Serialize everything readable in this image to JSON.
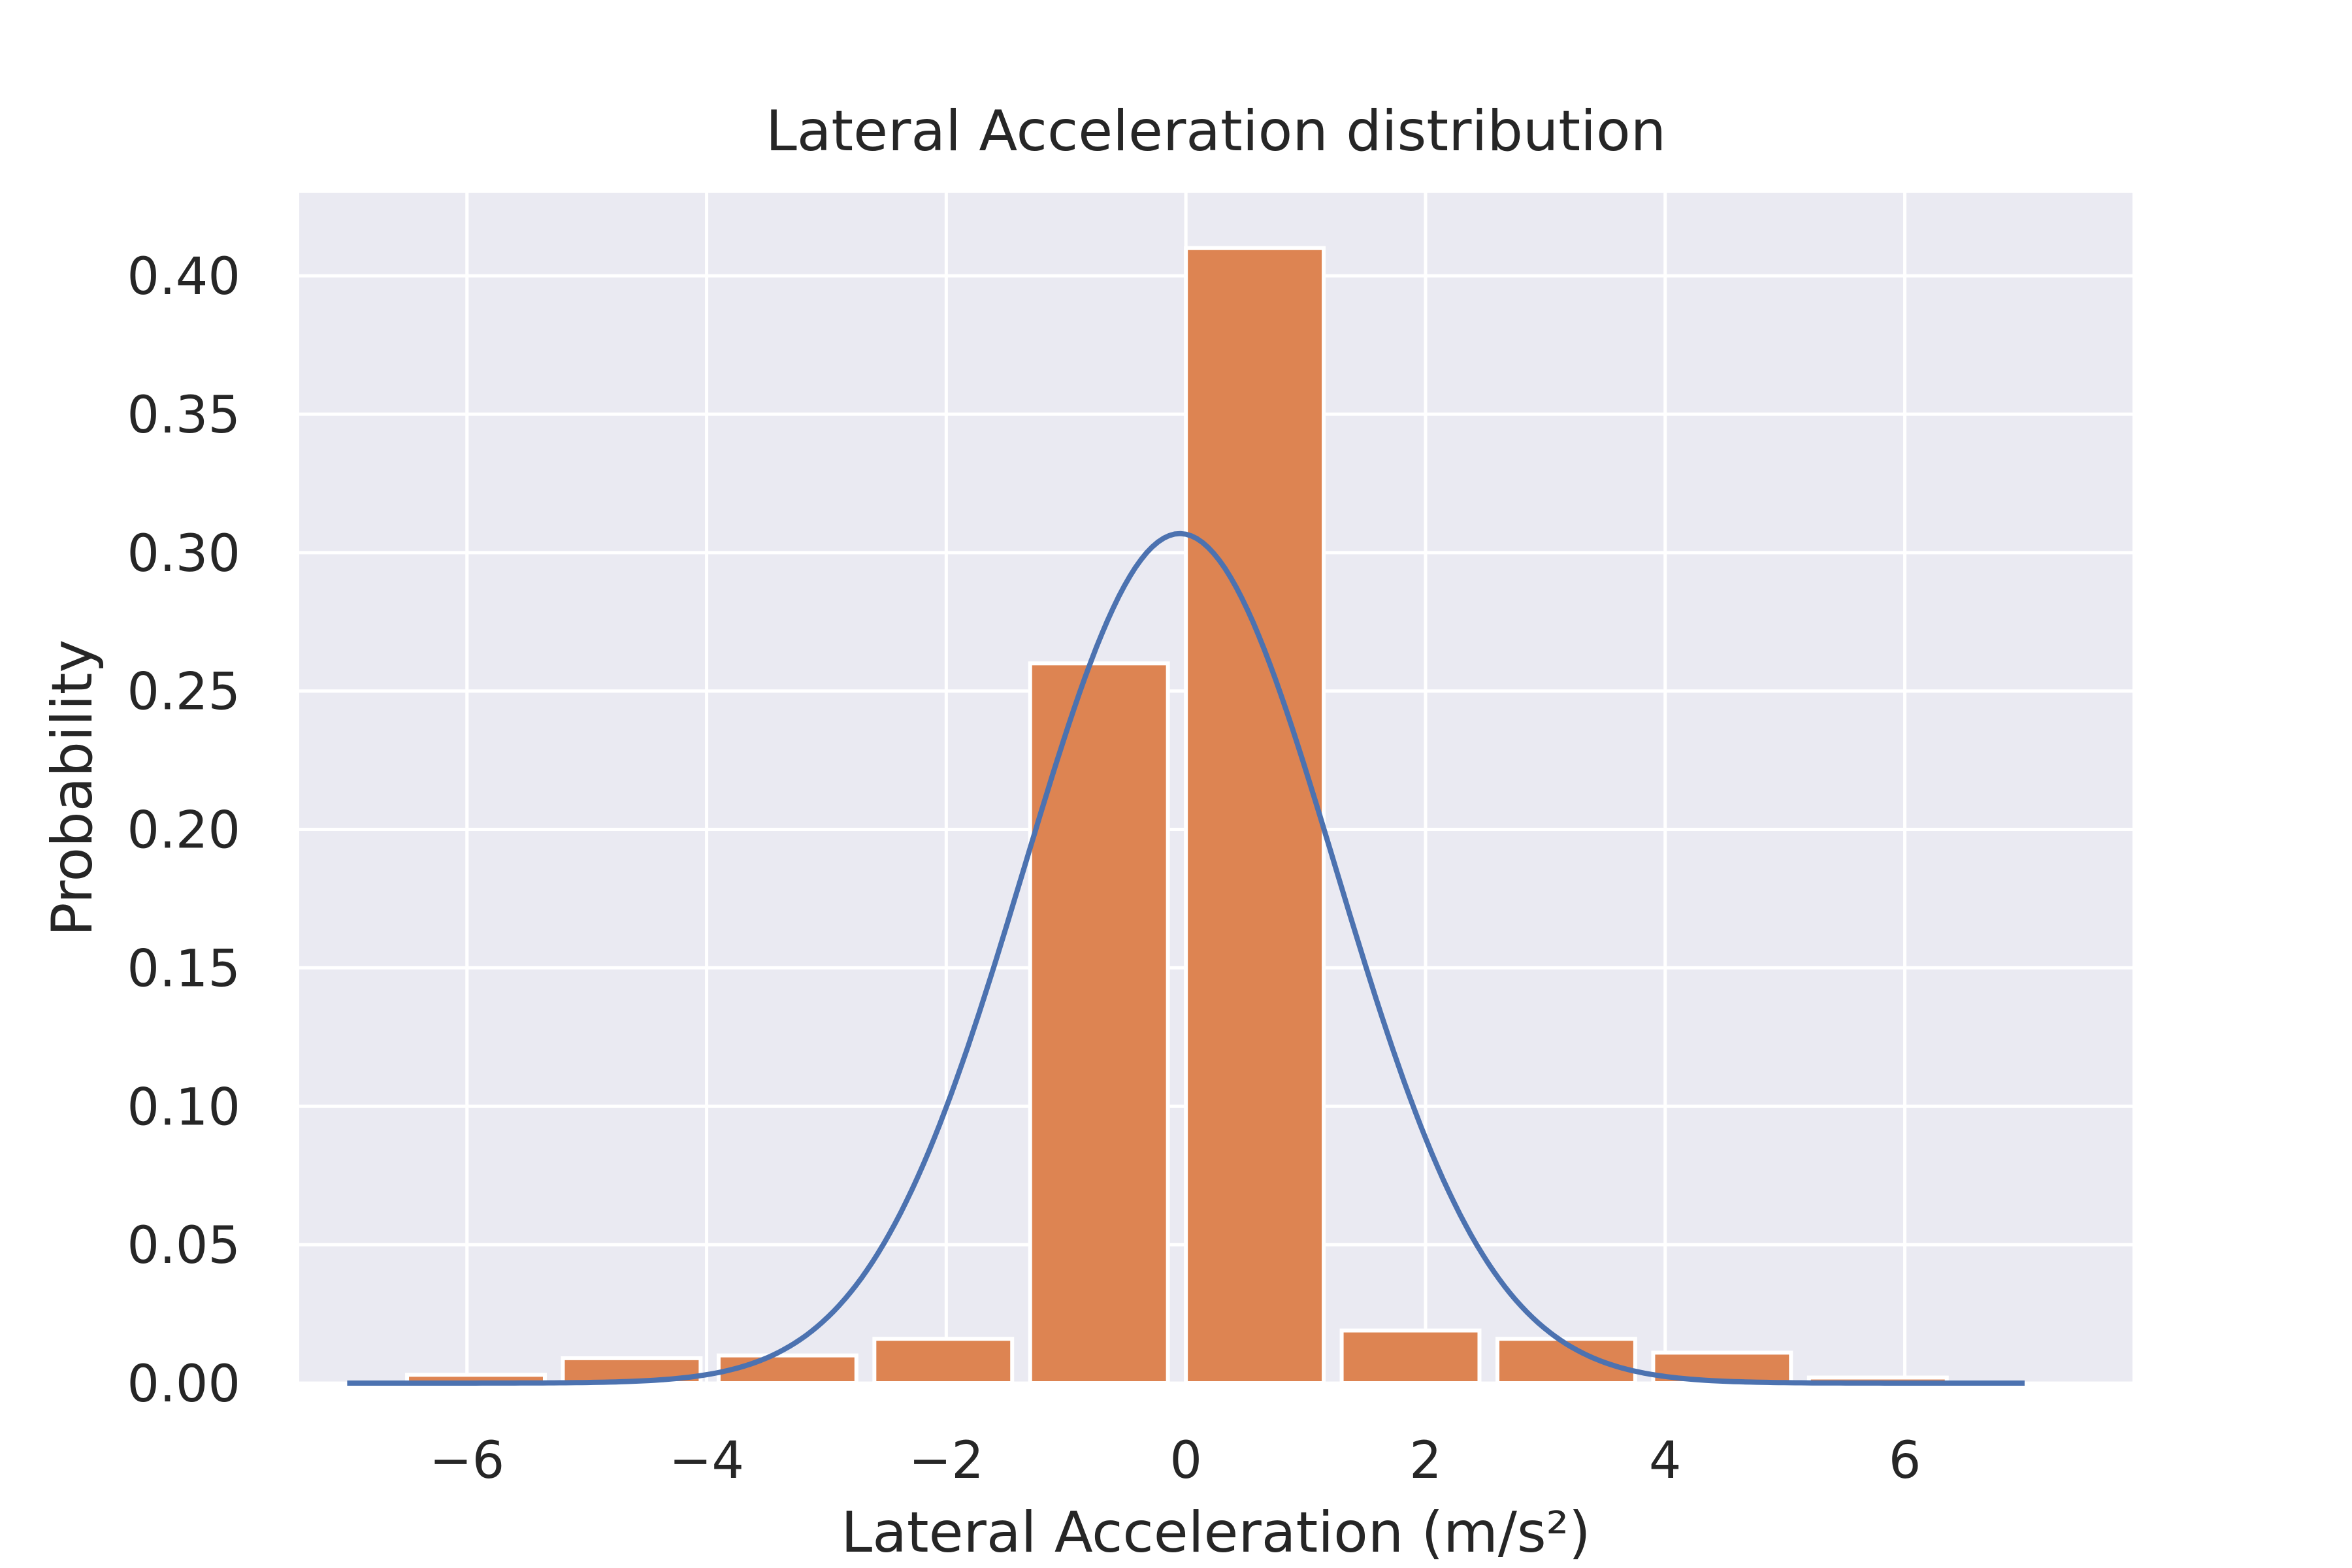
{
  "chart_data": {
    "type": "bar",
    "title": "Lateral Acceleration distribution",
    "xlabel": "Lateral Acceleration (m/s²)",
    "ylabel": "Probability",
    "xlim": [
      -7.4,
      7.9
    ],
    "ylim": [
      0,
      0.43
    ],
    "grid": true,
    "legend": "none",
    "colors": {
      "bars": "#dd8452",
      "curve": "#4c72b0",
      "background": "#eaeaf2",
      "grid": "#ffffff"
    },
    "xticks": [
      {
        "value": -6,
        "label": "−6"
      },
      {
        "value": -4,
        "label": "−4"
      },
      {
        "value": -2,
        "label": "−2"
      },
      {
        "value": 0,
        "label": "0"
      },
      {
        "value": 2,
        "label": "2"
      },
      {
        "value": 4,
        "label": "4"
      },
      {
        "value": 6,
        "label": "6"
      }
    ],
    "yticks": [
      {
        "value": 0.0,
        "label": "0.00"
      },
      {
        "value": 0.05,
        "label": "0.05"
      },
      {
        "value": 0.1,
        "label": "0.10"
      },
      {
        "value": 0.15,
        "label": "0.15"
      },
      {
        "value": 0.2,
        "label": "0.20"
      },
      {
        "value": 0.25,
        "label": "0.25"
      },
      {
        "value": 0.3,
        "label": "0.30"
      },
      {
        "value": 0.35,
        "label": "0.35"
      },
      {
        "value": 0.4,
        "label": "0.40"
      }
    ],
    "bins": [
      {
        "x0": -6.5,
        "x1": -5.35,
        "value": 0.003
      },
      {
        "x0": -5.2,
        "x1": -4.05,
        "value": 0.009
      },
      {
        "x0": -3.9,
        "x1": -2.75,
        "value": 0.01
      },
      {
        "x0": -2.6,
        "x1": -1.45,
        "value": 0.016
      },
      {
        "x0": -1.3,
        "x1": -0.15,
        "value": 0.26
      },
      {
        "x0": 0.0,
        "x1": 1.15,
        "value": 0.41
      },
      {
        "x0": 1.3,
        "x1": 2.45,
        "value": 0.019
      },
      {
        "x0": 2.6,
        "x1": 3.75,
        "value": 0.016
      },
      {
        "x0": 3.9,
        "x1": 5.05,
        "value": 0.011
      },
      {
        "x0": 5.2,
        "x1": 6.35,
        "value": 0.002
      }
    ],
    "curve": {
      "type": "normal-pdf",
      "mean": -0.05,
      "std": 1.3,
      "x_range": [
        -7.0,
        7.0
      ]
    }
  }
}
